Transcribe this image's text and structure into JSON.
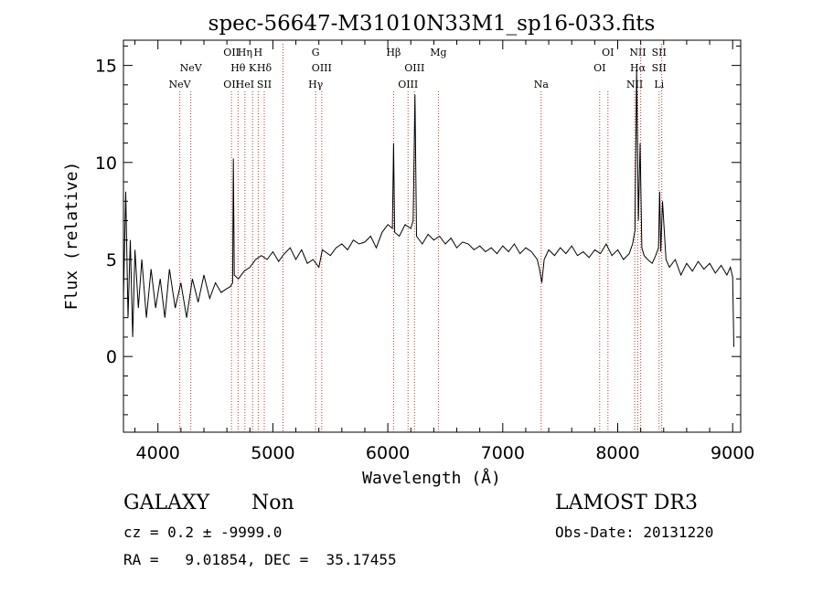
{
  "chart_data": {
    "type": "line",
    "title": "spec-56647-M31010N33M1_sp16-033.fits",
    "xlabel": "Wavelength (Å)",
    "ylabel": "Flux (relative)",
    "xlim": [
      3700,
      9070
    ],
    "ylim": [
      -3.9,
      16.3
    ],
    "x_ticks": [
      4000,
      5000,
      6000,
      7000,
      8000,
      9000
    ],
    "x_tick_labels": [
      "4000",
      "5000",
      "6000",
      "7000",
      "8000",
      "9000"
    ],
    "y_ticks": [
      0,
      5,
      10,
      15
    ],
    "y_tick_labels": [
      "0",
      "5",
      "10",
      "15"
    ],
    "grid": false,
    "series": [
      {
        "name": "spectrum",
        "x": [
          3700,
          3720,
          3740,
          3760,
          3780,
          3800,
          3830,
          3860,
          3900,
          3940,
          3980,
          4020,
          4060,
          4100,
          4150,
          4200,
          4250,
          4300,
          4350,
          4400,
          4450,
          4500,
          4550,
          4600,
          4630,
          4650,
          4656,
          4664,
          4700,
          4750,
          4800,
          4850,
          4900,
          4950,
          5000,
          5050,
          5100,
          5150,
          5200,
          5250,
          5300,
          5350,
          5400,
          5430,
          5500,
          5550,
          5600,
          5650,
          5700,
          5750,
          5800,
          5850,
          5900,
          5950,
          6000,
          6040,
          6050,
          6060,
          6100,
          6150,
          6200,
          6220,
          6236,
          6250,
          6300,
          6350,
          6400,
          6450,
          6500,
          6550,
          6600,
          6650,
          6700,
          6750,
          6800,
          6850,
          6900,
          6950,
          7000,
          7050,
          7100,
          7150,
          7200,
          7250,
          7300,
          7320,
          7340,
          7360,
          7400,
          7450,
          7500,
          7550,
          7600,
          7650,
          7700,
          7750,
          7800,
          7850,
          7900,
          7950,
          8000,
          8050,
          8100,
          8130,
          8150,
          8165,
          8180,
          8195,
          8210,
          8230,
          8260,
          8300,
          8330,
          8355,
          8365,
          8375,
          8390,
          8420,
          8450,
          8500,
          8550,
          8600,
          8650,
          8700,
          8750,
          8800,
          8850,
          8900,
          8950,
          8980,
          9000,
          9010
        ],
        "values": [
          3.0,
          8.5,
          2.0,
          6.0,
          1.0,
          5.5,
          2.5,
          5.0,
          2.0,
          4.5,
          2.5,
          4.0,
          2.0,
          4.5,
          2.5,
          3.8,
          2.0,
          4.0,
          2.8,
          4.2,
          3.0,
          3.8,
          3.3,
          3.5,
          3.6,
          3.8,
          10.2,
          4.2,
          4.0,
          4.4,
          4.6,
          5.0,
          5.2,
          5.0,
          5.4,
          4.9,
          5.3,
          5.6,
          5.0,
          5.5,
          4.8,
          5.0,
          4.6,
          5.5,
          5.2,
          5.6,
          5.8,
          5.5,
          6.0,
          5.8,
          5.9,
          6.2,
          5.6,
          6.4,
          6.8,
          6.6,
          11.0,
          6.4,
          6.2,
          6.8,
          6.6,
          7.0,
          13.5,
          6.2,
          5.8,
          6.3,
          6.0,
          6.2,
          5.8,
          6.1,
          5.6,
          5.9,
          5.8,
          5.5,
          5.7,
          5.4,
          5.6,
          5.3,
          5.7,
          5.4,
          5.8,
          5.3,
          5.6,
          5.4,
          5.0,
          4.5,
          3.8,
          5.0,
          5.5,
          5.2,
          5.6,
          5.3,
          5.7,
          5.2,
          5.4,
          5.1,
          5.5,
          5.3,
          5.8,
          5.2,
          5.5,
          5.0,
          5.3,
          5.8,
          6.5,
          14.8,
          7.0,
          11.0,
          5.6,
          5.2,
          5.0,
          4.8,
          5.2,
          5.6,
          8.5,
          5.4,
          8.0,
          5.0,
          4.6,
          5.0,
          4.2,
          4.8,
          4.4,
          4.9,
          4.5,
          4.8,
          4.3,
          4.7,
          4.2,
          4.6,
          4.1,
          0.5
        ]
      }
    ],
    "line_markers": [
      {
        "wavelength": 4190,
        "rows": [
          "",
          "",
          "NeV"
        ]
      },
      {
        "wavelength": 4286,
        "rows": [
          "",
          "NeV",
          ""
        ]
      },
      {
        "wavelength": 4640,
        "rows": [
          "OII",
          "",
          "OII"
        ]
      },
      {
        "wavelength": 4697,
        "rows": [
          "",
          "Hθ",
          ""
        ]
      },
      {
        "wavelength": 4757,
        "rows": [
          "Hη",
          "",
          "HeI"
        ]
      },
      {
        "wavelength": 4823,
        "rows": [
          "",
          "K",
          ""
        ]
      },
      {
        "wavelength": 4872,
        "rows": [
          "H",
          "",
          ""
        ]
      },
      {
        "wavelength": 4925,
        "rows": [
          "",
          "Hδ",
          "SII"
        ]
      },
      {
        "wavelength": 5088,
        "rows": [
          "",
          "",
          ""
        ]
      },
      {
        "wavelength": 5372,
        "rows": [
          "G",
          "",
          "Hγ"
        ]
      },
      {
        "wavelength": 5425,
        "rows": [
          "",
          "OIII",
          ""
        ]
      },
      {
        "wavelength": 6050,
        "rows": [
          "Hβ",
          "",
          ""
        ]
      },
      {
        "wavelength": 6176,
        "rows": [
          "",
          "",
          "OIII"
        ]
      },
      {
        "wavelength": 6232,
        "rows": [
          "",
          "OIII",
          ""
        ]
      },
      {
        "wavelength": 6440,
        "rows": [
          "Mg",
          "",
          ""
        ]
      },
      {
        "wavelength": 7334,
        "rows": [
          "",
          "",
          "Na"
        ]
      },
      {
        "wavelength": 7843,
        "rows": [
          "",
          "OI",
          ""
        ]
      },
      {
        "wavelength": 7915,
        "rows": [
          "OI",
          "",
          ""
        ]
      },
      {
        "wavelength": 8148,
        "rows": [
          "",
          "",
          "NII"
        ]
      },
      {
        "wavelength": 8175,
        "rows": [
          "NII",
          "Hα",
          ""
        ]
      },
      {
        "wavelength": 8200,
        "rows": [
          "",
          "",
          ""
        ]
      },
      {
        "wavelength": 8360,
        "rows": [
          "SII",
          "SII",
          "Li"
        ]
      },
      {
        "wavelength": 8383,
        "rows": [
          "",
          "",
          ""
        ]
      }
    ]
  },
  "footer": {
    "object_class": "GALAXY",
    "subclass": "Non",
    "cz_line": "cz = 0.2 ± -9999.0",
    "coords_line": "RA =   9.01854, DEC =  35.17455",
    "survey": "LAMOST DR3",
    "obs_date_line": "Obs-Date: 20131220"
  }
}
